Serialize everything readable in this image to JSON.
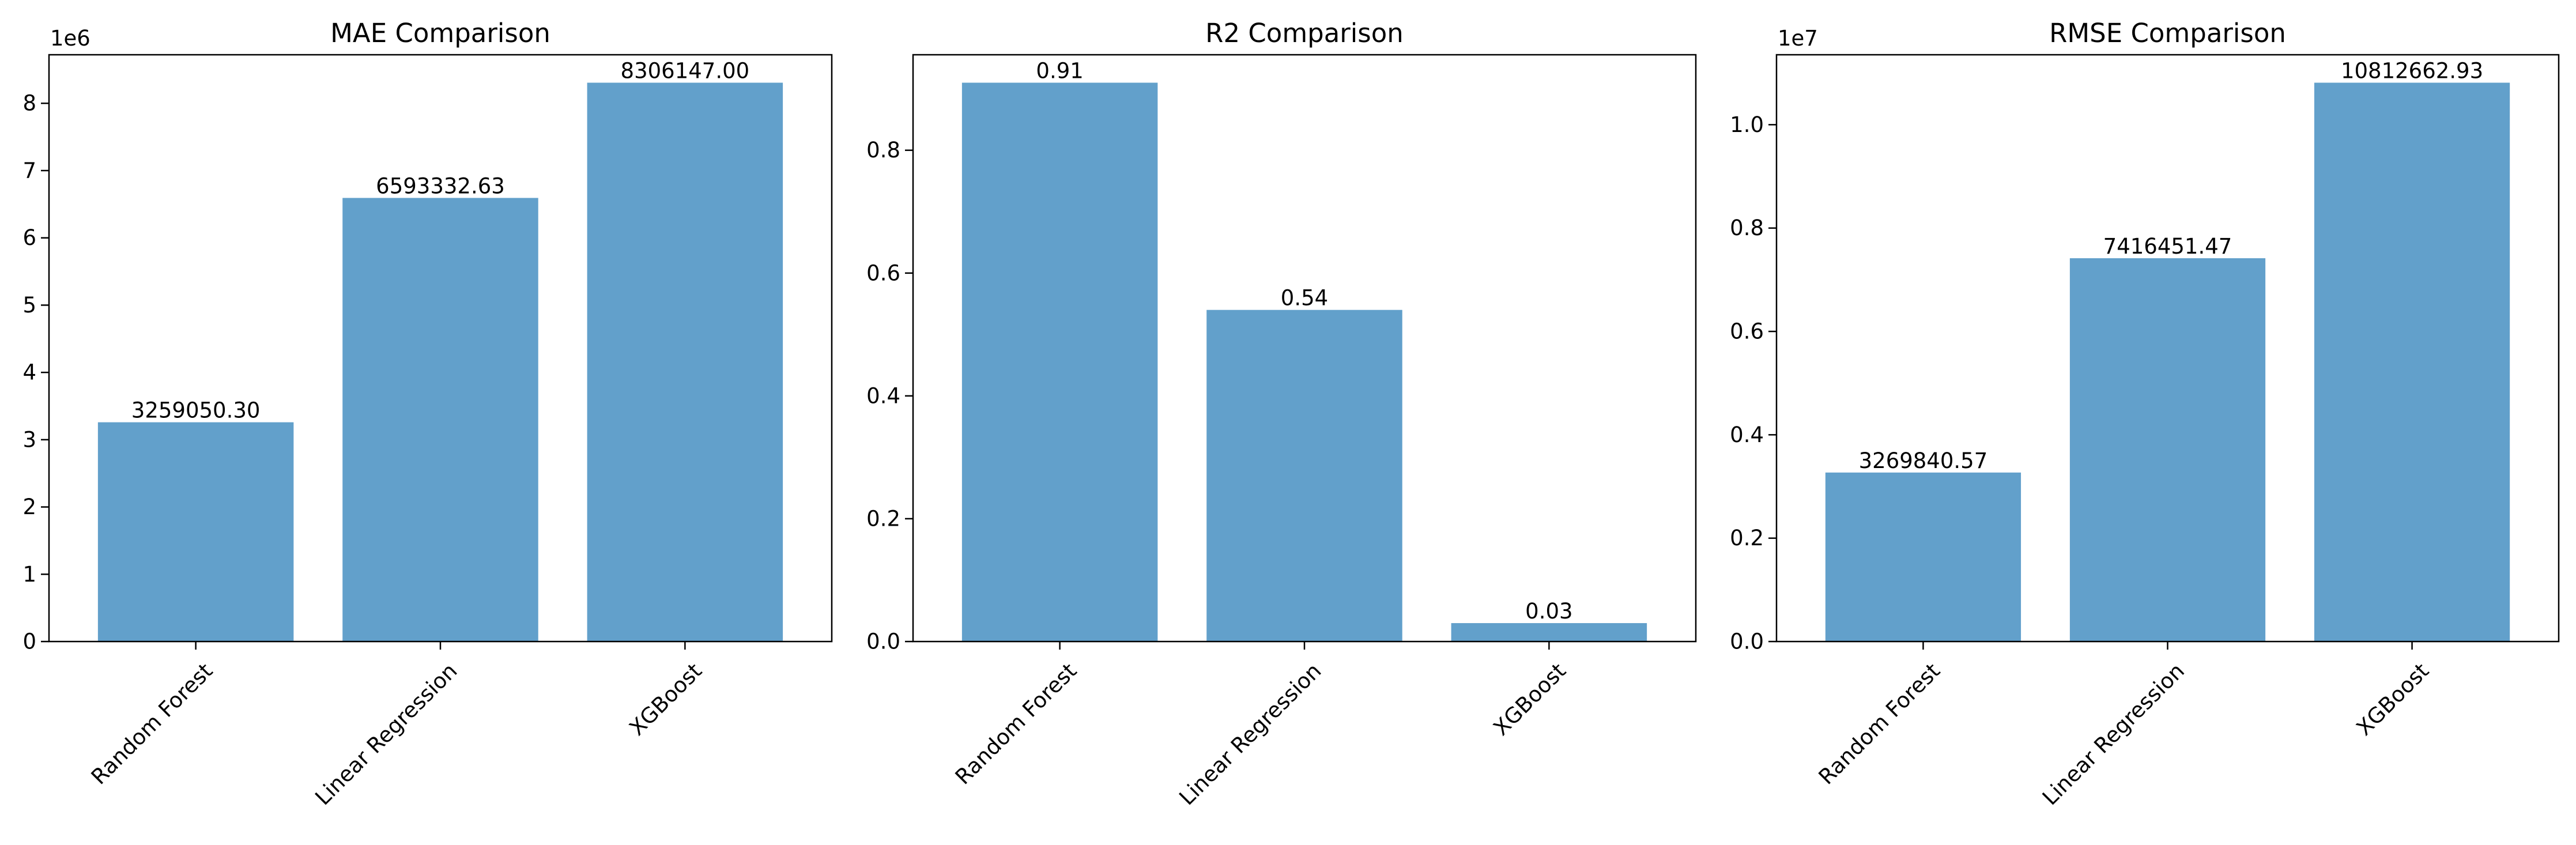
{
  "chart_data": [
    {
      "type": "bar",
      "title": "MAE Comparison",
      "categories": [
        "Random Forest",
        "Linear Regression",
        "XGBoost"
      ],
      "values": [
        3259050.3,
        6593332.63,
        8306147.0
      ],
      "value_labels": [
        "3259050.30",
        "6593332.63",
        "8306147.00"
      ],
      "ylim": [
        0,
        8721454.35
      ],
      "yticks": [
        0,
        1000000,
        2000000,
        3000000,
        4000000,
        5000000,
        6000000,
        7000000,
        8000000
      ],
      "ytick_labels": [
        "0",
        "1",
        "2",
        "3",
        "4",
        "5",
        "6",
        "7",
        "8"
      ],
      "y_multiplier": "1e6",
      "color": "#62a0cb",
      "grid": false
    },
    {
      "type": "bar",
      "title": "R2 Comparison",
      "categories": [
        "Random Forest",
        "Linear Regression",
        "XGBoost"
      ],
      "values": [
        0.91,
        0.54,
        0.03
      ],
      "value_labels": [
        "0.91",
        "0.54",
        "0.03"
      ],
      "ylim": [
        0,
        0.9555
      ],
      "yticks": [
        0,
        0.2,
        0.4,
        0.6,
        0.8
      ],
      "ytick_labels": [
        "0.0",
        "0.2",
        "0.4",
        "0.6",
        "0.8"
      ],
      "y_multiplier": "",
      "color": "#62a0cb",
      "grid": false
    },
    {
      "type": "bar",
      "title": "RMSE Comparison",
      "categories": [
        "Random Forest",
        "Linear Regression",
        "XGBoost"
      ],
      "values": [
        3269840.57,
        7416451.47,
        10812662.93
      ],
      "value_labels": [
        "3269840.57",
        "7416451.47",
        "10812662.93"
      ],
      "ylim": [
        0,
        11353296.08
      ],
      "yticks": [
        0,
        2000000,
        4000000,
        6000000,
        8000000,
        10000000
      ],
      "ytick_labels": [
        "0.0",
        "0.2",
        "0.4",
        "0.6",
        "0.8",
        "1.0"
      ],
      "y_multiplier": "1e7",
      "color": "#62a0cb",
      "grid": false
    }
  ]
}
